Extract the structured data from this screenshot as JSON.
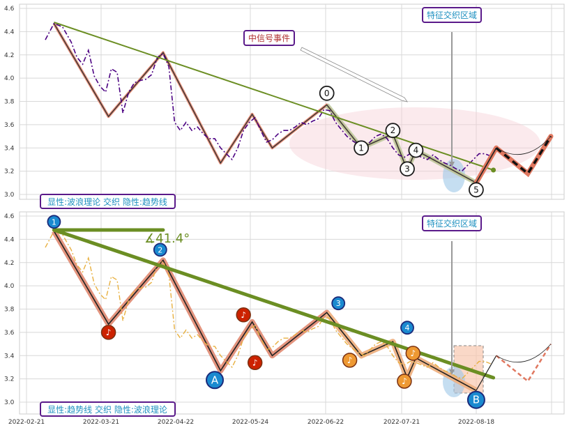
{
  "chart_data": [
    {
      "type": "line",
      "x_dates": [
        "2022-02-21",
        "2022-03-21",
        "2022-04-22",
        "2022-05-24",
        "2022-06-22",
        "2022-07-21",
        "2022-08-18"
      ],
      "ylim": [
        2.92,
        4.62
      ],
      "y_ticks": [
        3.0,
        3.2,
        3.4,
        3.6,
        3.8,
        4.0,
        4.2,
        4.4,
        4.6
      ],
      "grid": true,
      "price_series": {
        "points": [
          [
            0,
            4.33
          ],
          [
            3,
            4.47
          ],
          [
            6,
            4.44
          ],
          [
            9,
            4.31
          ],
          [
            11,
            4.18
          ],
          [
            13,
            4.12
          ],
          [
            15,
            4.24
          ],
          [
            17,
            4.02
          ],
          [
            19,
            3.93
          ],
          [
            21,
            3.88
          ],
          [
            23,
            4.08
          ],
          [
            25,
            4.05
          ],
          [
            27,
            3.7
          ],
          [
            29,
            3.88
          ],
          [
            31,
            3.96
          ],
          [
            33,
            3.98
          ],
          [
            35,
            3.99
          ],
          [
            37,
            4.03
          ],
          [
            39,
            4.18
          ],
          [
            41,
            4.21
          ],
          [
            43,
            4.1
          ],
          [
            45,
            3.62
          ],
          [
            47,
            3.55
          ],
          [
            49,
            3.62
          ],
          [
            51,
            3.55
          ],
          [
            53,
            3.58
          ],
          [
            55,
            3.52
          ],
          [
            57,
            3.48
          ],
          [
            59,
            3.48
          ],
          [
            61,
            3.4
          ],
          [
            63,
            3.35
          ],
          [
            65,
            3.3
          ],
          [
            67,
            3.4
          ],
          [
            69,
            3.55
          ],
          [
            71,
            3.62
          ],
          [
            73,
            3.66
          ],
          [
            75,
            3.55
          ],
          [
            77,
            3.45
          ],
          [
            79,
            3.47
          ],
          [
            81,
            3.52
          ],
          [
            83,
            3.55
          ],
          [
            85,
            3.55
          ],
          [
            87,
            3.58
          ],
          [
            89,
            3.62
          ],
          [
            91,
            3.6
          ],
          [
            93,
            3.63
          ],
          [
            95,
            3.65
          ],
          [
            97,
            3.73
          ],
          [
            99,
            3.72
          ],
          [
            101,
            3.62
          ],
          [
            103,
            3.56
          ],
          [
            105,
            3.5
          ],
          [
            107,
            3.46
          ],
          [
            109,
            3.43
          ],
          [
            111,
            3.4
          ],
          [
            113,
            3.45
          ],
          [
            115,
            3.5
          ],
          [
            117,
            3.52
          ],
          [
            119,
            3.48
          ],
          [
            121,
            3.4
          ],
          [
            123,
            3.34
          ],
          [
            125,
            3.32
          ],
          [
            127,
            3.35
          ],
          [
            129,
            3.34
          ],
          [
            131,
            3.32
          ],
          [
            133,
            3.3
          ],
          [
            135,
            3.34
          ],
          [
            137,
            3.3
          ],
          [
            139,
            3.27
          ],
          [
            141,
            3.25
          ],
          [
            143,
            3.22
          ],
          [
            145,
            3.2
          ],
          [
            147,
            3.25
          ],
          [
            149,
            3.3
          ],
          [
            151,
            3.35
          ],
          [
            153,
            3.35
          ],
          [
            155,
            3.33
          ]
        ]
      },
      "wave_points": [
        [
          3,
          4.47
        ],
        [
          22,
          3.67
        ],
        [
          41,
          4.22
        ],
        [
          61,
          3.27
        ],
        [
          72,
          3.69
        ],
        [
          79,
          3.4
        ],
        [
          98,
          3.77
        ],
        [
          110,
          3.4
        ],
        [
          121,
          3.52
        ],
        [
          126,
          3.21
        ],
        [
          129,
          3.38
        ],
        [
          150,
          3.1
        ]
      ],
      "projection_solid": [
        [
          150,
          3.1
        ],
        [
          157,
          3.4
        ]
      ],
      "projection_dashed": [
        [
          157,
          3.4
        ],
        [
          168,
          3.18
        ],
        [
          176,
          3.5
        ]
      ],
      "trendline": [
        [
          3,
          4.48
        ],
        [
          156,
          3.21
        ]
      ],
      "wave_labels": [
        {
          "text": "0",
          "x": 98,
          "y": 3.87
        },
        {
          "text": "1",
          "x": 110,
          "y": 3.4
        },
        {
          "text": "2",
          "x": 121,
          "y": 3.55
        },
        {
          "text": "3",
          "x": 126,
          "y": 3.22
        },
        {
          "text": "4",
          "x": 129,
          "y": 3.38
        },
        {
          "text": "5",
          "x": 150,
          "y": 3.04
        }
      ],
      "annotation_1": "中信号事件",
      "annotation_2": "特征交织区域",
      "footer_label": "显性:波浪理论 交织 隐性:趋势线"
    },
    {
      "type": "line",
      "x_dates": [
        "2022-02-21",
        "2022-03-21",
        "2022-04-22",
        "2022-05-24",
        "2022-06-22",
        "2022-07-21",
        "2022-08-18"
      ],
      "ylim": [
        2.92,
        4.62
      ],
      "y_ticks": [
        3.0,
        3.2,
        3.4,
        3.6,
        3.8,
        4.0,
        4.2,
        4.4,
        4.6
      ],
      "grid": true,
      "angle_label": "∡41.4°",
      "trend_points": [
        {
          "text": "1",
          "x": 3,
          "y": 4.55
        },
        {
          "text": "2",
          "x": 40,
          "y": 4.31
        },
        {
          "text": "3",
          "x": 102,
          "y": 3.85
        },
        {
          "text": "4",
          "x": 126,
          "y": 3.64
        }
      ],
      "point_b": {
        "text": "B",
        "x": 150,
        "y": 3.02
      },
      "point_a": {
        "text": "A",
        "x": 59,
        "y": 3.19
      },
      "music_markers": [
        {
          "x": 22,
          "y": 3.6,
          "color": "#cc2200"
        },
        {
          "x": 69,
          "y": 3.75,
          "color": "#cc2200"
        },
        {
          "x": 73,
          "y": 3.34,
          "color": "#cc2200"
        },
        {
          "x": 106,
          "y": 3.36,
          "color": "#ee9933"
        },
        {
          "x": 125,
          "y": 3.18,
          "color": "#ee9933"
        },
        {
          "x": 128,
          "y": 3.42,
          "color": "#ee9933"
        }
      ],
      "annotation_2": "特征交织区域",
      "footer_label": "显性:趋势线 交织 隐性:波浪理论"
    }
  ],
  "colors": {
    "price_dashdot_top": "#4b0082",
    "price_dashdot_bottom": "#e8b040",
    "trendline": "#6b8e23",
    "wave_fill": "#e8907a",
    "label_border": "#5a1a8a",
    "label_text_blue": "#1e90c0",
    "label_text_red": "#b03030",
    "circle_blue": "#1a8ad0"
  }
}
